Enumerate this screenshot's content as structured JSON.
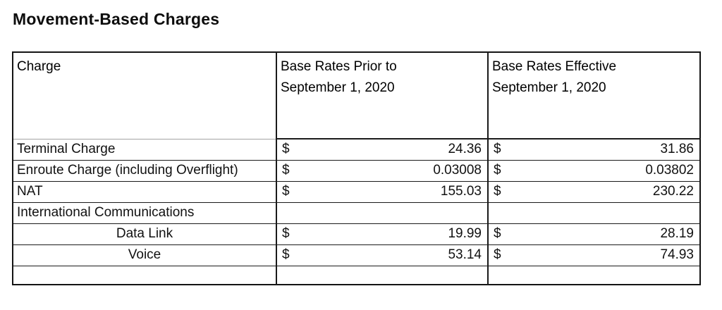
{
  "page": {
    "title": "Movement-Based Charges"
  },
  "table": {
    "currency_symbol": "$",
    "columns": [
      {
        "label": "Charge"
      },
      {
        "label_line1": "Base Rates Prior to",
        "label_line2": "September 1, 2020"
      },
      {
        "label_line1": "Base Rates Effective",
        "label_line2": "September 1, 2020"
      }
    ],
    "rows": [
      {
        "charge": "Terminal Charge",
        "centered": false,
        "prior": "24.36",
        "effective": "31.86"
      },
      {
        "charge": "Enroute Charge (including Overflight)",
        "centered": false,
        "prior": "0.03008",
        "effective": "0.03802"
      },
      {
        "charge": "NAT",
        "centered": false,
        "prior": "155.03",
        "effective": "230.22"
      },
      {
        "charge": "International Communications",
        "centered": false,
        "prior": null,
        "effective": null
      },
      {
        "charge": "Data Link",
        "centered": true,
        "prior": "19.99",
        "effective": "28.19"
      },
      {
        "charge": "Voice",
        "centered": true,
        "prior": "53.14",
        "effective": "74.93"
      },
      {
        "charge": "",
        "centered": false,
        "prior": null,
        "effective": null
      }
    ]
  }
}
